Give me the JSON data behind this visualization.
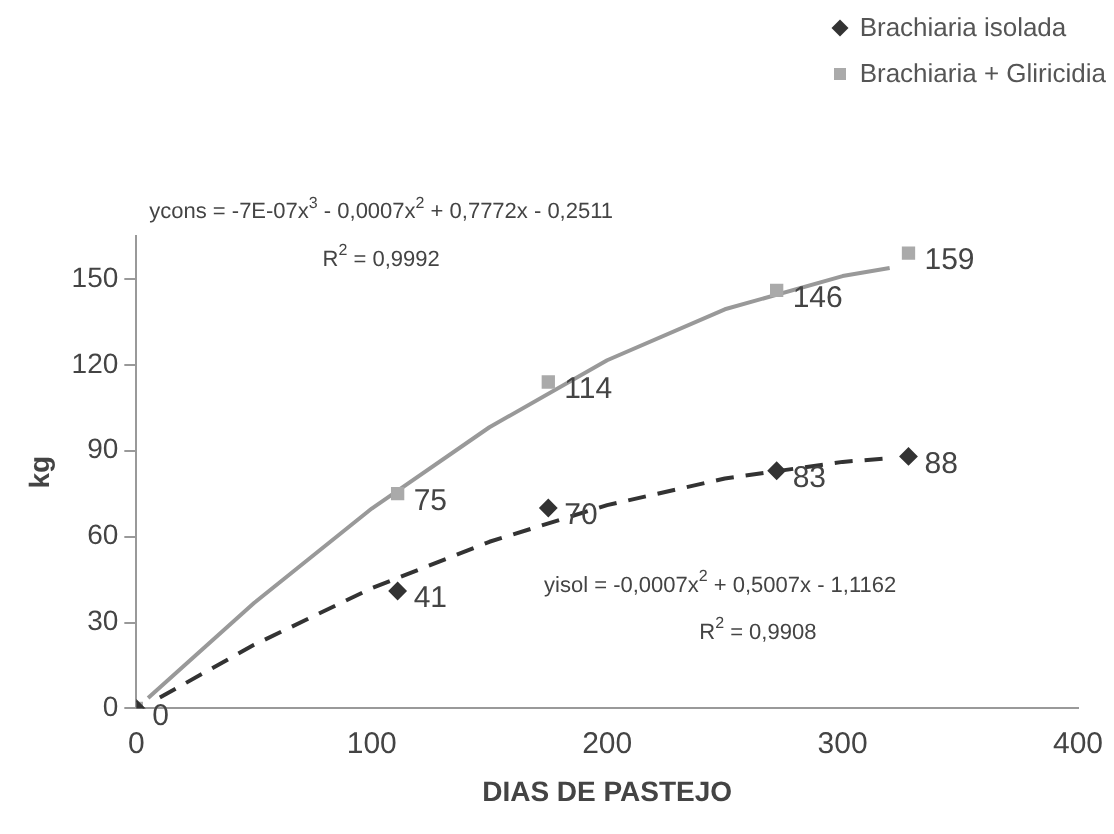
{
  "chart_data": {
    "type": "scatter",
    "xlabel": "DIAS DE PASTEJO",
    "ylabel": "kg",
    "xlim": [
      0,
      400
    ],
    "xticks": [
      0,
      100,
      200,
      300,
      400
    ],
    "ylim": [
      0,
      165
    ],
    "yticks": [
      0,
      30,
      60,
      90,
      120,
      150
    ],
    "grid": false,
    "legend": "top right",
    "series": [
      {
        "name": "Brachiaria isolada",
        "type": "scatter",
        "marker": "diamond",
        "color": "#333333",
        "x": [
          0,
          111,
          175,
          272,
          328
        ],
        "values": [
          0,
          41,
          70,
          83,
          88
        ],
        "value_labels": [
          "0",
          "41",
          "70",
          "83",
          "88"
        ]
      },
      {
        "name": "Brachiaria + Gliricidia",
        "type": "scatter",
        "marker": "square",
        "color": "#aaaaaa",
        "x": [
          0,
          111,
          175,
          272,
          328
        ],
        "values": [
          0,
          75,
          114,
          146,
          159
        ],
        "value_labels": [
          null,
          "75",
          "114",
          "146",
          "159"
        ]
      },
      {
        "type": "line",
        "marker": "none",
        "line_style": "dashed",
        "color": "#333333",
        "x": [
          10,
          50,
          100,
          150,
          200,
          250,
          300,
          320
        ],
        "values": [
          3.8,
          22.2,
          42.0,
          58.2,
          71.0,
          80.3,
          86.1,
          87.4
        ]
      },
      {
        "type": "line",
        "marker": "none",
        "line_style": "solid",
        "color": "#999999",
        "x": [
          5,
          50,
          100,
          150,
          200,
          250,
          300,
          320
        ],
        "values": [
          3.6,
          36.8,
          69.8,
          98.2,
          121.6,
          139.4,
          151.0,
          153.8
        ]
      }
    ],
    "annotations": [
      "ycons = -7E-07x$^{3}$ - 0,0007x$^{2}$ + 0,7772x - 0,2511",
      "R$^{2}$ = 0,9992",
      "yisol = -0,0007x$^{2}$ + 0,5007x - 1,1162",
      "R$^{2}$ = 0,9908"
    ]
  }
}
